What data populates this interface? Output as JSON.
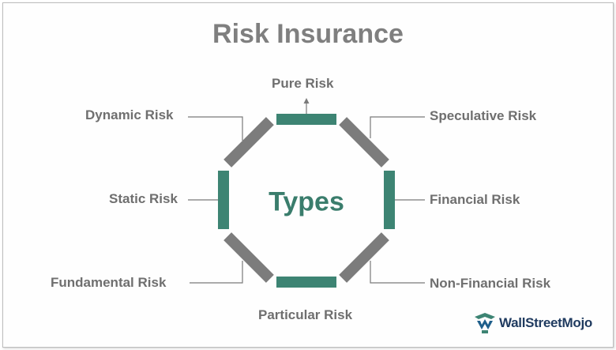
{
  "title": "Risk Insurance",
  "center_label": "Types",
  "risk_types": {
    "pure": "Pure Risk",
    "speculative": "Speculative Risk",
    "financial": "Financial Risk",
    "non_financial": "Non-Financial Risk",
    "particular": "Particular Risk",
    "fundamental": "Fundamental Risk",
    "static": "Static Risk",
    "dynamic": "Dynamic Risk"
  },
  "logo": {
    "text": "WallStreetMojo"
  },
  "colors": {
    "green_bar": "#3d8473",
    "gray_bar": "#7c7c7c",
    "title_text": "#7f7f7f",
    "label_text": "#6f6f6f",
    "center_text": "#3a7d6c",
    "connector": "#7a7a7a"
  }
}
